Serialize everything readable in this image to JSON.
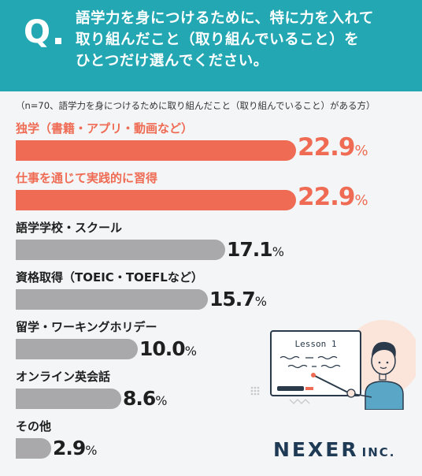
{
  "header": {
    "q_mark": "Q",
    "question_lines": [
      "語学力を身につけるために、特に力を入れて",
      "取り組んだこと（取り組んでいること）を",
      "ひとつだけ選んでください。"
    ]
  },
  "note": "（n=70、語学力を身につけるために取り組んだこと（取り組んでいること）がある方）",
  "chart_data": {
    "type": "bar",
    "orientation": "horizontal",
    "categories": [
      "独学（書籍・アプリ・動画など）",
      "仕事を通じて実践的に習得",
      "語学学校・スクール",
      "資格取得（TOEIC・TOEFLなど）",
      "留学・ワーキングホリデー",
      "オンライン英会話",
      "その他"
    ],
    "values": [
      22.9,
      22.9,
      17.1,
      15.7,
      10.0,
      8.6,
      2.9
    ],
    "value_labels": [
      "22.9",
      "22.9",
      "17.1",
      "15.7",
      "10.0",
      "8.6",
      "2.9"
    ],
    "unit": "%",
    "highlight_top": 2,
    "xlim": [
      0,
      25.5
    ]
  },
  "illustration": {
    "board_text": "Lesson 1"
  },
  "logo": {
    "name": "NEXER",
    "suffix": "INC."
  },
  "colors": {
    "header_bg": "#23a8b3",
    "highlight": "#ef6b53",
    "normal_bar": "#a9a9ac",
    "normal_text": "#1f1f1f",
    "logo": "#1f3a55"
  }
}
